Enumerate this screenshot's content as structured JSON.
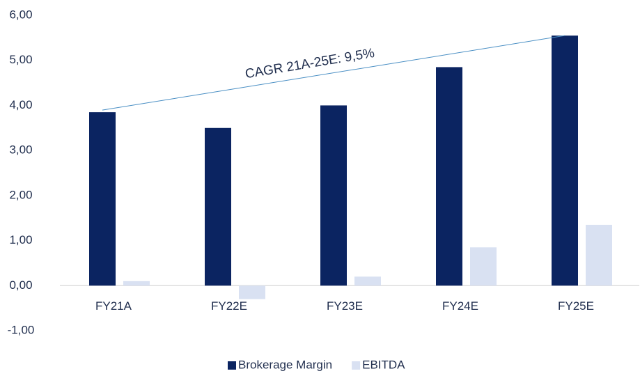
{
  "chart_data": {
    "type": "bar",
    "categories": [
      "FY21A",
      "FY22E",
      "FY23E",
      "FY24E",
      "FY25E"
    ],
    "series": [
      {
        "name": "Brokerage Margin",
        "color": "#0b2461",
        "values": [
          3.85,
          3.5,
          4.0,
          4.85,
          5.55
        ]
      },
      {
        "name": "EBITDA",
        "color": "#d9e1f2",
        "values": [
          0.1,
          -0.3,
          0.2,
          0.85,
          1.35
        ]
      }
    ],
    "ylim": [
      -1,
      6
    ],
    "yticks": [
      {
        "value": -1,
        "label": "-1,00"
      },
      {
        "value": 0,
        "label": "0,00"
      },
      {
        "value": 1,
        "label": "1,00"
      },
      {
        "value": 2,
        "label": "2,00"
      },
      {
        "value": 3,
        "label": "3,00"
      },
      {
        "value": 4,
        "label": "4,00"
      },
      {
        "value": 5,
        "label": "5,00"
      },
      {
        "value": 6,
        "label": "6,00"
      }
    ],
    "annotation": "CAGR 21A-25E: 9,5%",
    "legend": "bottom"
  }
}
